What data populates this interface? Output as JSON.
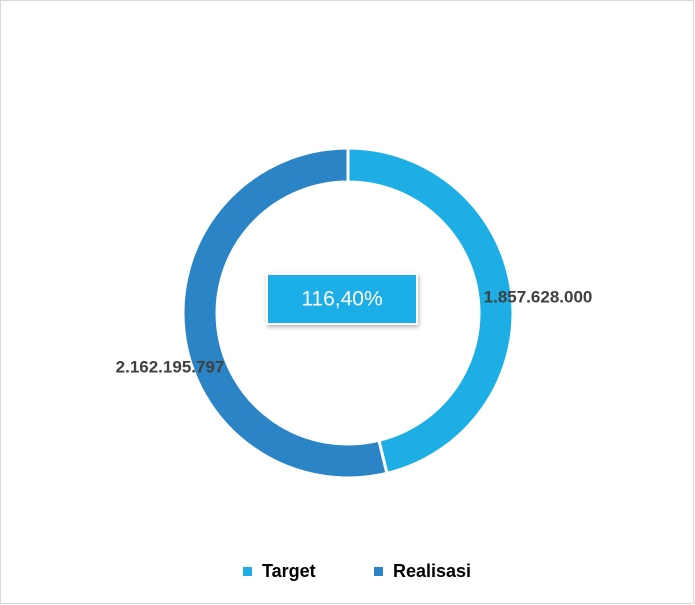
{
  "chart_data": {
    "type": "donut",
    "categories": [
      "Target",
      "Realisasi"
    ],
    "values": [
      1857628000,
      2162195797
    ],
    "value_labels": [
      "1.857.628.000",
      "2.162.195.797"
    ],
    "colors": [
      "#1eaee6",
      "#2b84c6"
    ],
    "center_label": "116,40%",
    "legend": "bottom"
  }
}
